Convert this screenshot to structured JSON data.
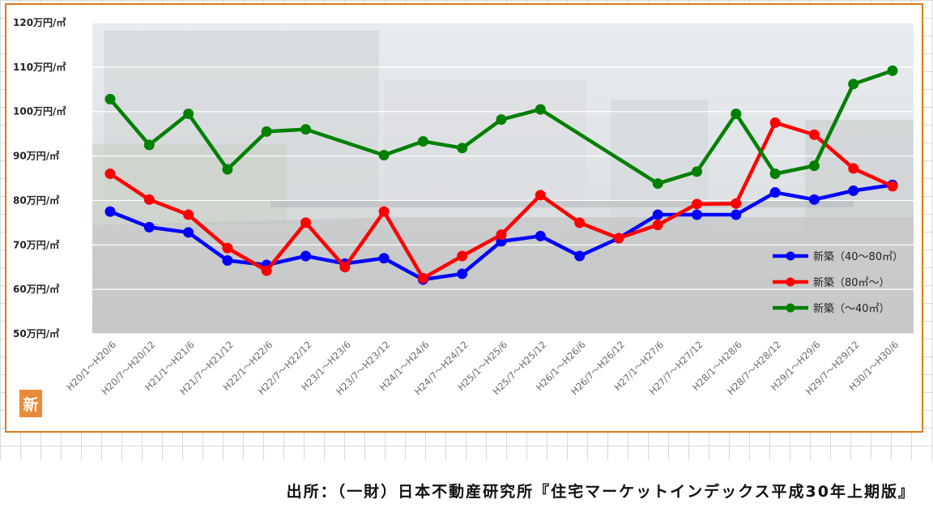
{
  "chart_data": {
    "type": "line",
    "categories": [
      "H20/1～H20/6",
      "H20/7～H20/12",
      "H21/1～H21/6",
      "H21/7～H21/12",
      "H22/1～H22/6",
      "H22/7～H22/12",
      "H23/1～H23/6",
      "H23/7～H23/12",
      "H24/1～H24/6",
      "H24/7～H24/12",
      "H25/1～H25/6",
      "H25/7～H25/12",
      "H26/1～H26/6",
      "H26/7～H26/12",
      "H27/1～H27/6",
      "H27/7～H27/12",
      "H28/1～H28/6",
      "H28/7～H28/12",
      "H29/1～H29/6",
      "H29/7～H29/12",
      "H30/1～H30/6"
    ],
    "series": [
      {
        "name": "新築（40～80㎡）",
        "color": "#0000ff",
        "values": [
          77.5,
          74,
          72.8,
          66.5,
          65.5,
          67.5,
          65.8,
          67,
          62.2,
          63.5,
          70.8,
          72,
          67.5,
          71.5,
          76.8,
          76.8,
          76.8,
          81.8,
          80.2,
          82.2,
          83.5
        ]
      },
      {
        "name": "新築（80㎡～）",
        "color": "#ff0000",
        "values": [
          86,
          80.2,
          76.8,
          69.3,
          64.2,
          75,
          65,
          77.5,
          62.5,
          67.5,
          72.3,
          81.2,
          75,
          71.5,
          74.5,
          79.2,
          79.3,
          97.5,
          94.8,
          87.2,
          83.2
        ]
      },
      {
        "name": "新築（～40㎡）",
        "color": "#008000",
        "values": [
          102.8,
          92.5,
          99.5,
          87,
          95.5,
          96,
          null,
          90.2,
          93.3,
          91.8,
          98.2,
          100.5,
          null,
          null,
          83.8,
          86.5,
          99.5,
          86,
          87.8,
          106.2,
          109.2
        ]
      }
    ],
    "yticks": [
      "50万円/㎡",
      "60万円/㎡",
      "70万円/㎡",
      "80万円/㎡",
      "90万円/㎡",
      "100万円/㎡",
      "110万円/㎡",
      "120万円/㎡"
    ],
    "ylim": [
      50,
      120
    ],
    "grid": true,
    "legend_position": "right"
  },
  "badge_text": "新",
  "source_caption": "出所：（一財）日本不動産研究所『住宅マーケットインデックス平成30年上期版』"
}
